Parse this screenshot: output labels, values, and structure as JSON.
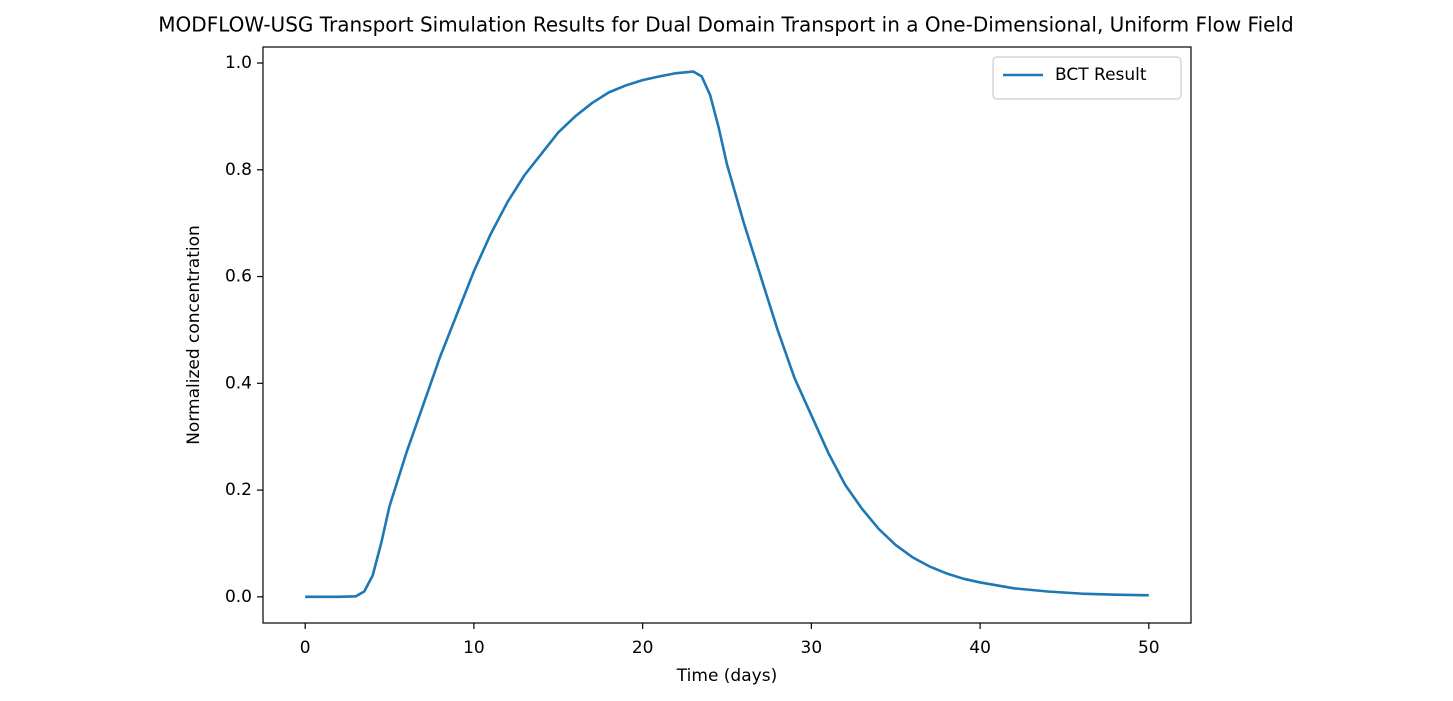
{
  "chart_data": {
    "type": "line",
    "title": "MODFLOW-USG Transport Simulation Results for Dual Domain Transport in a One-Dimensional, Uniform Flow Field",
    "xlabel": "Time (days)",
    "ylabel": "Normalized concentration",
    "x": [
      0,
      1,
      2,
      3,
      3.5,
      4,
      4.5,
      5,
      6,
      7,
      8,
      9,
      10,
      11,
      12,
      13,
      14,
      15,
      16,
      17,
      18,
      19,
      20,
      21,
      22,
      23,
      23.5,
      24,
      24.5,
      25,
      26,
      27,
      28,
      29,
      30,
      31,
      32,
      33,
      34,
      35,
      36,
      37,
      38,
      39,
      40,
      42,
      44,
      46,
      48,
      50
    ],
    "series": [
      {
        "name": "BCT Result",
        "color": "#1f77b4",
        "values": [
          0,
          0,
          0,
          0.001,
          0.01,
          0.04,
          0.1,
          0.17,
          0.27,
          0.36,
          0.45,
          0.53,
          0.61,
          0.68,
          0.74,
          0.79,
          0.83,
          0.87,
          0.9,
          0.925,
          0.945,
          0.958,
          0.968,
          0.975,
          0.981,
          0.984,
          0.975,
          0.94,
          0.88,
          0.81,
          0.7,
          0.6,
          0.5,
          0.41,
          0.34,
          0.27,
          0.21,
          0.165,
          0.127,
          0.097,
          0.074,
          0.057,
          0.044,
          0.034,
          0.027,
          0.016,
          0.01,
          0.006,
          0.004,
          0.003
        ]
      }
    ],
    "xlim": [
      -2.5,
      52.5
    ],
    "ylim": [
      -0.049,
      1.03
    ],
    "xticks": [
      0,
      10,
      20,
      30,
      40,
      50
    ],
    "yticks": [
      {
        "value": 0,
        "label": "0.0"
      },
      {
        "value": 0.2,
        "label": "0.2"
      },
      {
        "value": 0.4,
        "label": "0.4"
      },
      {
        "value": 0.6,
        "label": "0.6"
      },
      {
        "value": 0.8,
        "label": "0.8"
      },
      {
        "value": 1,
        "label": "1.0"
      }
    ],
    "legend": "upper right",
    "grid": false
  }
}
